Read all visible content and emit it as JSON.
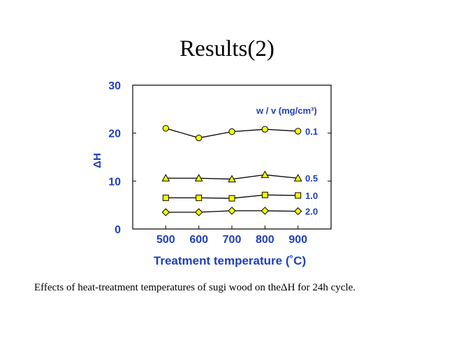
{
  "slide": {
    "title": "Results(2)",
    "caption": "Effects of heat-treatment temperatures of sugi wood on theΔH for 24h cycle."
  },
  "chart_data": {
    "type": "line",
    "title": "",
    "xlabel": "Treatment temperature (˚C)",
    "ylabel": "ΔH",
    "x": [
      500,
      600,
      700,
      800,
      900
    ],
    "xlim": [
      400,
      1000
    ],
    "ylim": [
      0,
      30
    ],
    "yticks": [
      0,
      10,
      20,
      30
    ],
    "xticks": [
      500,
      600,
      700,
      800,
      900
    ],
    "legend_title": "w / v (mg/cm³)",
    "grid": false,
    "colors": {
      "axis_text": "#1f3fbf",
      "marker_fill": "#ffff00",
      "line": "#000000"
    },
    "series": [
      {
        "name": "0.1",
        "marker": "circle",
        "values": [
          21.0,
          19.0,
          20.3,
          20.8,
          20.4
        ]
      },
      {
        "name": "0.5",
        "marker": "triangle",
        "values": [
          10.6,
          10.6,
          10.4,
          11.3,
          10.6
        ]
      },
      {
        "name": "1.0",
        "marker": "square",
        "values": [
          6.5,
          6.5,
          6.4,
          7.1,
          7.0
        ]
      },
      {
        "name": "2.0",
        "marker": "diamond",
        "values": [
          3.5,
          3.5,
          3.8,
          3.8,
          3.7
        ]
      }
    ]
  }
}
